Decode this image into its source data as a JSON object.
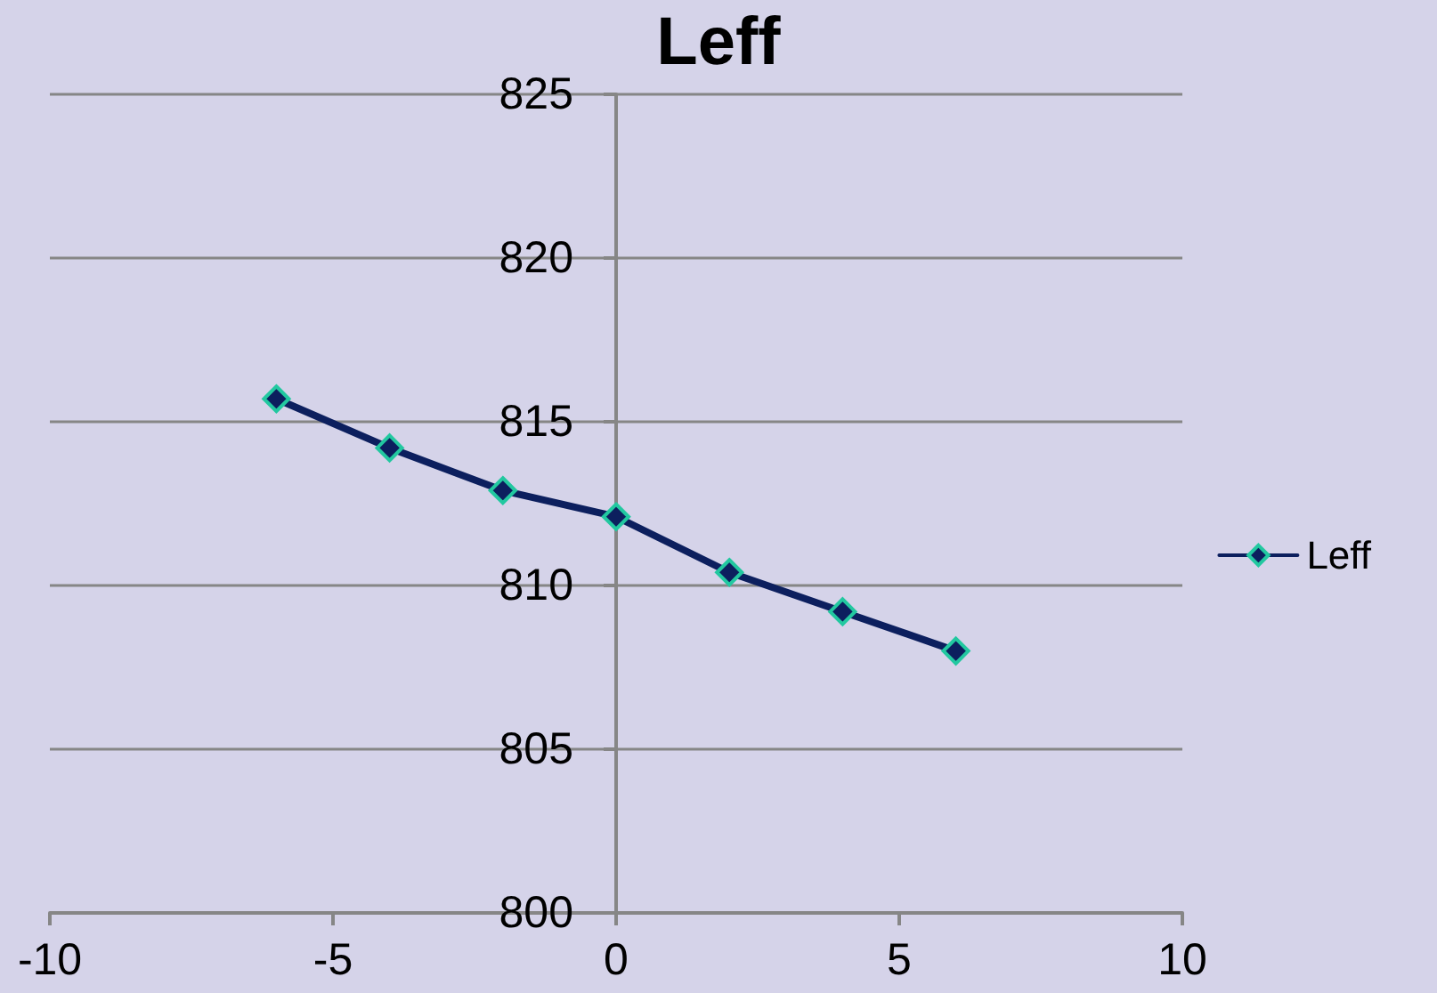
{
  "chart_data": {
    "type": "line",
    "title": "Leff",
    "x": [
      -6,
      -4,
      -2,
      0,
      2,
      4,
      6
    ],
    "series": [
      {
        "name": "Leff",
        "color": "#0c1f5e",
        "values": [
          815.7,
          814.2,
          812.9,
          812.1,
          810.4,
          809.2,
          808.0
        ]
      }
    ],
    "xlim": [
      -10,
      10
    ],
    "xticks": [
      -10,
      -5,
      0,
      5,
      10
    ],
    "ylim": [
      800,
      825
    ],
    "yticks": [
      800,
      805,
      810,
      815,
      820,
      825
    ],
    "grid": "y",
    "legend": "right",
    "marker": "diamond",
    "line_style": "solid"
  }
}
